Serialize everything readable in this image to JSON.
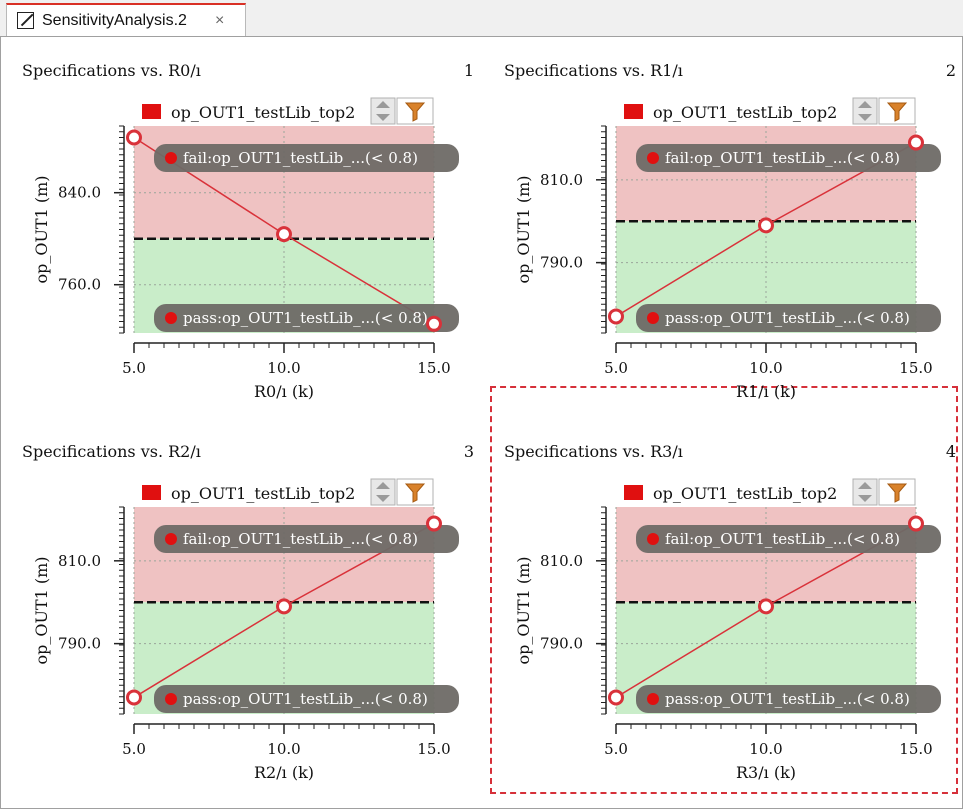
{
  "tab": {
    "title": "SensitivityAnalysis.2",
    "close_glyph": "×",
    "icon": "plot-icon"
  },
  "legend_label": "op_OUT1_testLib_top2",
  "colors": {
    "fail_zone": "#efc2c2",
    "pass_zone": "#c9edc9",
    "series": "#d9323a",
    "threshold": "#111111",
    "pill": "#6e6a66",
    "legend_swatch": "#e01010",
    "selection_frame": "#d6303a"
  },
  "chart_data": [
    {
      "type": "line",
      "title": "Specifications vs. R0/ı",
      "index": "1",
      "xlabel": "R0/ı (k)",
      "ylabel": "op_OUT1 (m)",
      "x": [
        5.0,
        10.0,
        15.0
      ],
      "series": [
        {
          "name": "op_OUT1_testLib_top2",
          "values": [
            888,
            804,
            726
          ]
        }
      ],
      "threshold": 800,
      "xlim": [
        5.0,
        15.0
      ],
      "ylim": [
        718,
        898
      ],
      "xticks": [
        "5.0",
        "10.0",
        "15.0"
      ],
      "yticks": [
        840.0,
        760.0
      ],
      "ytick_labels": [
        "840.0",
        "760.0"
      ],
      "fail_label": "fail:op_OUT1_testLib_...(< 0.8)",
      "pass_label": "pass:op_OUT1_testLib_...(< 0.8)",
      "selected": false
    },
    {
      "type": "line",
      "title": "Specifications vs. R1/ı",
      "index": "2",
      "xlabel": "R1/ı (k)",
      "ylabel": "op_OUT1 (m)",
      "x": [
        5.0,
        10.0,
        15.0
      ],
      "series": [
        {
          "name": "op_OUT1_testLib_top2",
          "values": [
            777,
            799,
            819
          ]
        }
      ],
      "threshold": 800,
      "xlim": [
        5.0,
        15.0
      ],
      "ylim": [
        773,
        823
      ],
      "xticks": [
        "5.0",
        "10.0",
        "15.0"
      ],
      "yticks": [
        810.0,
        790.0
      ],
      "ytick_labels": [
        "810.0",
        "790.0"
      ],
      "fail_label": "fail:op_OUT1_testLib_...(< 0.8)",
      "pass_label": "pass:op_OUT1_testLib_...(< 0.8)",
      "selected": false
    },
    {
      "type": "line",
      "title": "Specifications vs. R2/ı",
      "index": "3",
      "xlabel": "R2/ı (k)",
      "ylabel": "op_OUT1 (m)",
      "x": [
        5.0,
        10.0,
        15.0
      ],
      "series": [
        {
          "name": "op_OUT1_testLib_top2",
          "values": [
            777,
            799,
            819
          ]
        }
      ],
      "threshold": 800,
      "xlim": [
        5.0,
        15.0
      ],
      "ylim": [
        773,
        823
      ],
      "xticks": [
        "5.0",
        "10.0",
        "15.0"
      ],
      "yticks": [
        810.0,
        790.0
      ],
      "ytick_labels": [
        "810.0",
        "790.0"
      ],
      "fail_label": "fail:op_OUT1_testLib_...(< 0.8)",
      "pass_label": "pass:op_OUT1_testLib_...(< 0.8)",
      "selected": false
    },
    {
      "type": "line",
      "title": "Specifications vs. R3/ı",
      "index": "4",
      "xlabel": "R3/ı (k)",
      "ylabel": "op_OUT1 (m)",
      "x": [
        5.0,
        10.0,
        15.0
      ],
      "series": [
        {
          "name": "op_OUT1_testLib_top2",
          "values": [
            777,
            799,
            819
          ]
        }
      ],
      "threshold": 800,
      "xlim": [
        5.0,
        15.0
      ],
      "ylim": [
        773,
        823
      ],
      "xticks": [
        "5.0",
        "10.0",
        "15.0"
      ],
      "yticks": [
        810.0,
        790.0
      ],
      "ytick_labels": [
        "810.0",
        "790.0"
      ],
      "fail_label": "fail:op_OUT1_testLib_...(< 0.8)",
      "pass_label": "pass:op_OUT1_testLib_...(< 0.8)",
      "selected": true
    }
  ]
}
